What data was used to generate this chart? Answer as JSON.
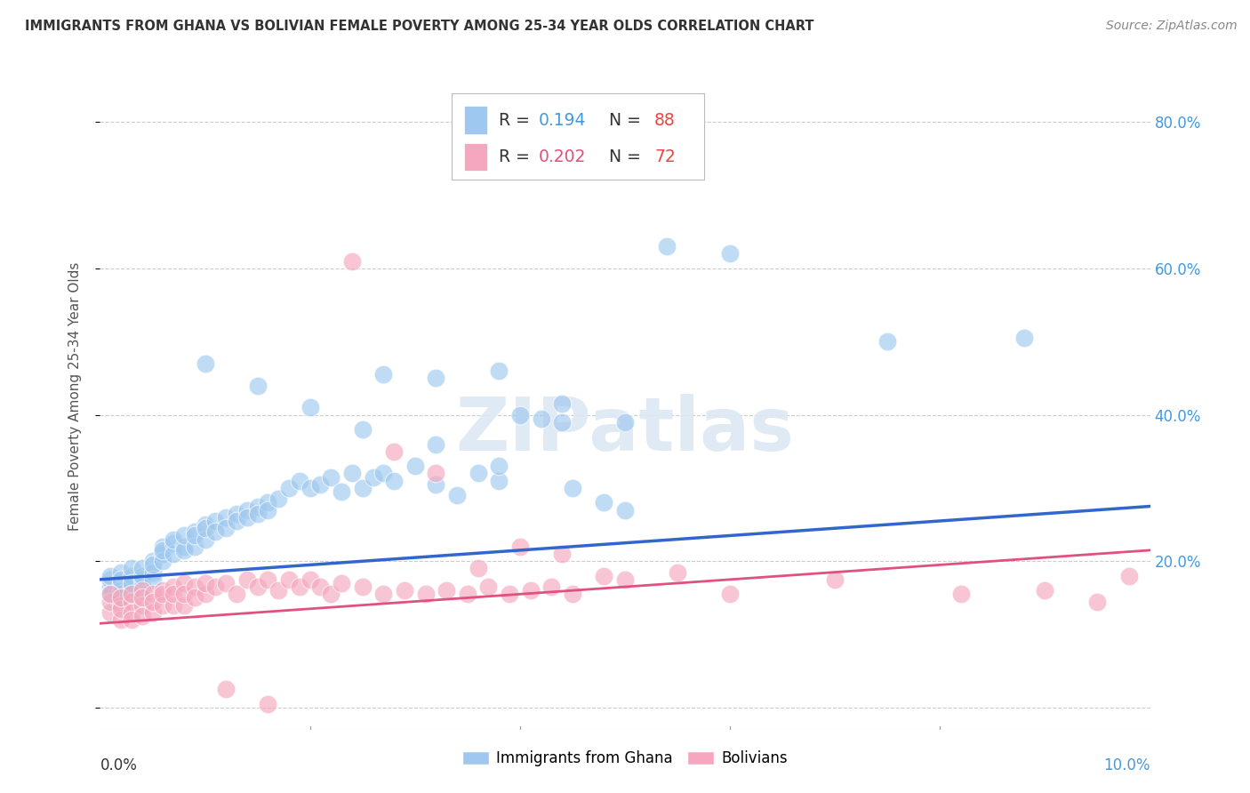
{
  "title": "IMMIGRANTS FROM GHANA VS BOLIVIAN FEMALE POVERTY AMONG 25-34 YEAR OLDS CORRELATION CHART",
  "source": "Source: ZipAtlas.com",
  "ylabel": "Female Poverty Among 25-34 Year Olds",
  "xlim": [
    0.0,
    0.1
  ],
  "ylim": [
    -0.03,
    0.88
  ],
  "yticks": [
    0.0,
    0.2,
    0.4,
    0.6,
    0.8
  ],
  "ytick_labels": [
    "",
    "20.0%",
    "40.0%",
    "60.0%",
    "80.0%"
  ],
  "series1_color": "#9EC8EF",
  "series2_color": "#F4A7BE",
  "series1_line_color": "#3366CC",
  "series2_line_color": "#E05080",
  "legend_label1": "Immigrants from Ghana",
  "legend_label2": "Bolivians",
  "watermark": "ZIPatlas",
  "ghana_x": [
    0.001,
    0.001,
    0.001,
    0.001,
    0.002,
    0.002,
    0.002,
    0.002,
    0.002,
    0.003,
    0.003,
    0.003,
    0.003,
    0.003,
    0.004,
    0.004,
    0.004,
    0.004,
    0.005,
    0.005,
    0.005,
    0.005,
    0.006,
    0.006,
    0.006,
    0.006,
    0.007,
    0.007,
    0.007,
    0.008,
    0.008,
    0.008,
    0.009,
    0.009,
    0.009,
    0.01,
    0.01,
    0.01,
    0.011,
    0.011,
    0.012,
    0.012,
    0.013,
    0.013,
    0.014,
    0.014,
    0.015,
    0.015,
    0.016,
    0.016,
    0.017,
    0.018,
    0.019,
    0.02,
    0.021,
    0.022,
    0.023,
    0.024,
    0.025,
    0.026,
    0.027,
    0.028,
    0.03,
    0.032,
    0.034,
    0.036,
    0.038,
    0.04,
    0.042,
    0.044,
    0.027,
    0.032,
    0.038,
    0.044,
    0.05,
    0.048,
    0.054,
    0.06,
    0.075,
    0.088,
    0.01,
    0.015,
    0.02,
    0.025,
    0.032,
    0.038,
    0.045,
    0.05
  ],
  "ghana_y": [
    0.165,
    0.175,
    0.155,
    0.18,
    0.17,
    0.16,
    0.185,
    0.155,
    0.175,
    0.165,
    0.18,
    0.155,
    0.19,
    0.17,
    0.175,
    0.165,
    0.18,
    0.19,
    0.2,
    0.185,
    0.175,
    0.195,
    0.21,
    0.22,
    0.2,
    0.215,
    0.225,
    0.21,
    0.23,
    0.22,
    0.215,
    0.235,
    0.24,
    0.22,
    0.235,
    0.25,
    0.23,
    0.245,
    0.255,
    0.24,
    0.26,
    0.245,
    0.265,
    0.255,
    0.27,
    0.26,
    0.275,
    0.265,
    0.28,
    0.27,
    0.285,
    0.3,
    0.31,
    0.3,
    0.305,
    0.315,
    0.295,
    0.32,
    0.3,
    0.315,
    0.32,
    0.31,
    0.33,
    0.305,
    0.29,
    0.32,
    0.31,
    0.4,
    0.395,
    0.39,
    0.455,
    0.45,
    0.46,
    0.415,
    0.39,
    0.28,
    0.63,
    0.62,
    0.5,
    0.505,
    0.47,
    0.44,
    0.41,
    0.38,
    0.36,
    0.33,
    0.3,
    0.27
  ],
  "bolivia_x": [
    0.001,
    0.001,
    0.001,
    0.002,
    0.002,
    0.002,
    0.002,
    0.003,
    0.003,
    0.003,
    0.003,
    0.004,
    0.004,
    0.004,
    0.004,
    0.005,
    0.005,
    0.005,
    0.006,
    0.006,
    0.006,
    0.007,
    0.007,
    0.007,
    0.008,
    0.008,
    0.008,
    0.009,
    0.009,
    0.01,
    0.01,
    0.011,
    0.012,
    0.013,
    0.014,
    0.015,
    0.016,
    0.017,
    0.018,
    0.019,
    0.02,
    0.021,
    0.022,
    0.023,
    0.025,
    0.027,
    0.029,
    0.031,
    0.033,
    0.035,
    0.037,
    0.039,
    0.041,
    0.043,
    0.045,
    0.048,
    0.05,
    0.055,
    0.06,
    0.07,
    0.082,
    0.09,
    0.095,
    0.098,
    0.024,
    0.028,
    0.032,
    0.036,
    0.04,
    0.044,
    0.012,
    0.016
  ],
  "bolivia_y": [
    0.13,
    0.145,
    0.155,
    0.14,
    0.12,
    0.135,
    0.15,
    0.145,
    0.13,
    0.155,
    0.12,
    0.16,
    0.14,
    0.125,
    0.15,
    0.155,
    0.13,
    0.145,
    0.16,
    0.14,
    0.155,
    0.165,
    0.14,
    0.155,
    0.17,
    0.14,
    0.155,
    0.165,
    0.15,
    0.155,
    0.17,
    0.165,
    0.17,
    0.155,
    0.175,
    0.165,
    0.175,
    0.16,
    0.175,
    0.165,
    0.175,
    0.165,
    0.155,
    0.17,
    0.165,
    0.155,
    0.16,
    0.155,
    0.16,
    0.155,
    0.165,
    0.155,
    0.16,
    0.165,
    0.155,
    0.18,
    0.175,
    0.185,
    0.155,
    0.175,
    0.155,
    0.16,
    0.145,
    0.18,
    0.61,
    0.35,
    0.32,
    0.19,
    0.22,
    0.21,
    0.025,
    0.005
  ],
  "ghana_line_x0": 0.0,
  "ghana_line_x1": 0.1,
  "ghana_line_y0": 0.175,
  "ghana_line_y1": 0.275,
  "bolivia_line_x0": 0.0,
  "bolivia_line_x1": 0.1,
  "bolivia_line_y0": 0.115,
  "bolivia_line_y1": 0.215
}
